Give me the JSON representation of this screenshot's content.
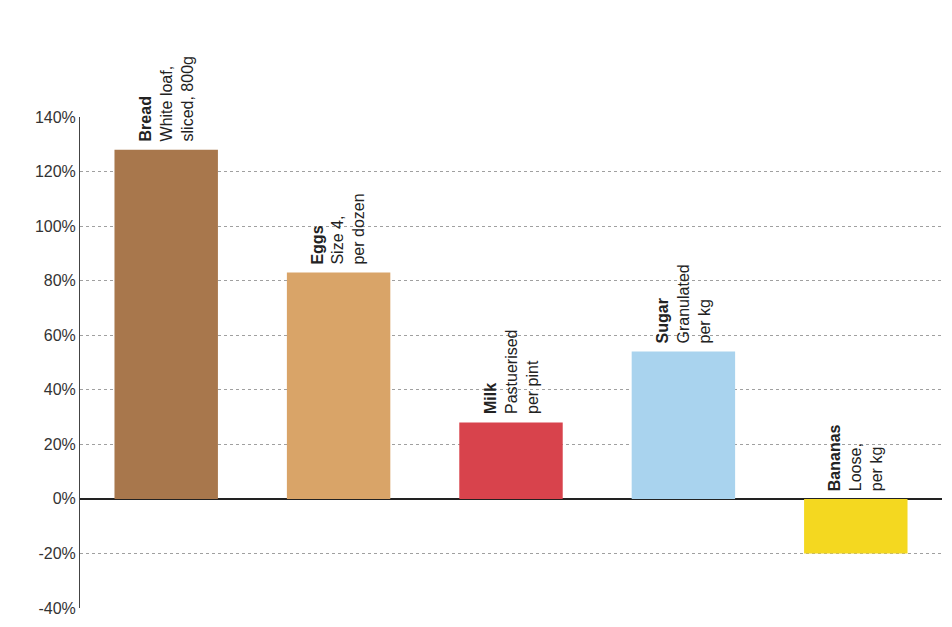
{
  "chart_data": {
    "type": "bar",
    "categories": [
      "Bread",
      "Eggs",
      "Milk",
      "Sugar",
      "Bananas"
    ],
    "annotations": [
      "White loaf, sliced, 800g",
      "Size 4, per dozen",
      "Pastuerised per pint",
      "Granulated per kg",
      "Loose, per kg"
    ],
    "values": [
      128,
      83,
      28,
      54,
      -20
    ],
    "colors": [
      "#a8774c",
      "#d9a468",
      "#d8434c",
      "#a9d3ee",
      "#f4d820"
    ],
    "ylim": [
      -40,
      140
    ],
    "yticks": [
      {
        "value": -40,
        "label": "-40%"
      },
      {
        "value": -20,
        "label": "-20%"
      },
      {
        "value": 0,
        "label": "0%"
      },
      {
        "value": 20,
        "label": "20%"
      },
      {
        "value": 40,
        "label": "40%"
      },
      {
        "value": 60,
        "label": "60%"
      },
      {
        "value": 80,
        "label": "80%"
      },
      {
        "value": 100,
        "label": "100%"
      },
      {
        "value": 120,
        "label": "120%"
      },
      {
        "value": 140,
        "label": "140%"
      }
    ],
    "grid": true,
    "tick_labels": "y"
  }
}
